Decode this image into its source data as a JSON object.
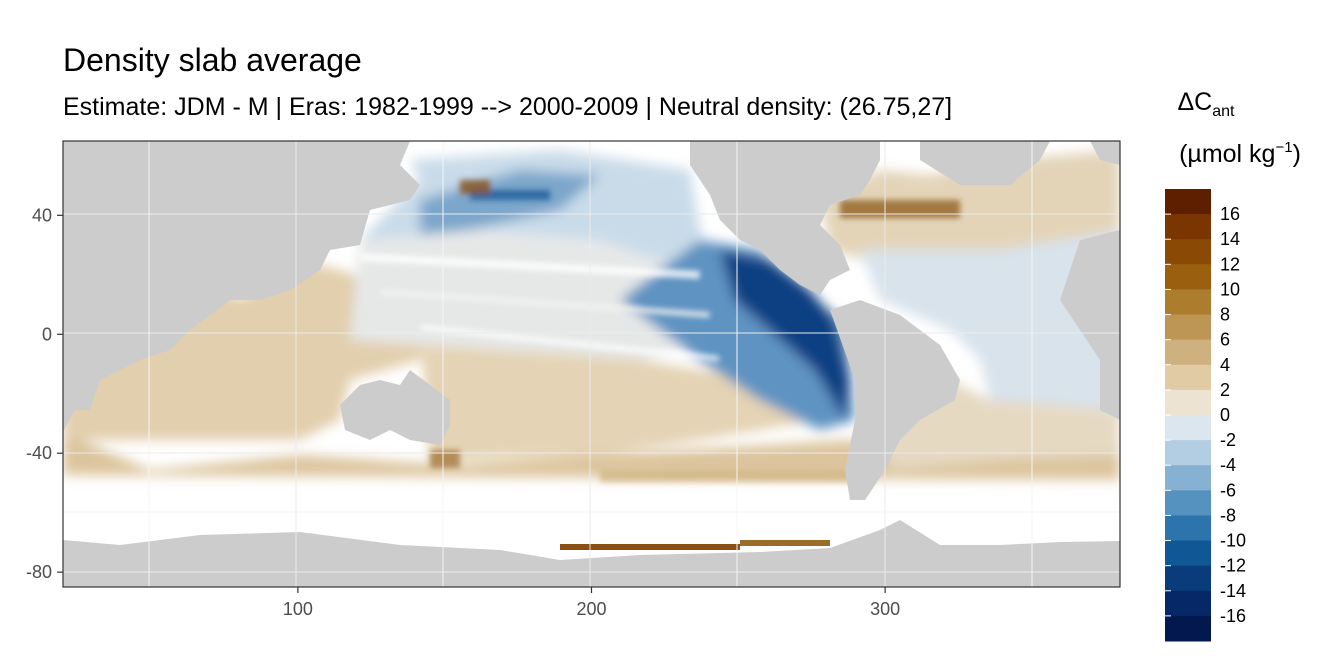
{
  "title": "Density slab average",
  "subtitle": "Estimate: JDM - M | Eras: 1982-1999 --> 2000-2009 | Neutral density: (26.75,27]",
  "chart_data": {
    "type": "heatmap",
    "title": "Density slab average",
    "subtitle": "Estimate: JDM - M | Eras: 1982-1999 --> 2000-2009 | Neutral density: (26.75,27]",
    "xlabel": "",
    "ylabel": "",
    "x_ticks": [
      100,
      200,
      300
    ],
    "y_ticks": [
      40,
      0,
      -40,
      -80
    ],
    "xlim": [
      20,
      380
    ],
    "ylim": [
      -85,
      65
    ],
    "grid": true,
    "legend": {
      "title_main": "ΔC",
      "title_sub": "ant",
      "units": "(µmol kg",
      "units_exp": "−1",
      "units_close": ")",
      "placement": "right",
      "breaks": [
        "16",
        "14",
        "12",
        "10",
        "8",
        "6",
        "4",
        "2",
        "0",
        "-2",
        "-4",
        "-6",
        "-8",
        "-10",
        "-12",
        "-14",
        "-16"
      ],
      "colors": [
        "#5e1e00",
        "#7a3500",
        "#8a4a06",
        "#9b600f",
        "#ac7d2c",
        "#bd9655",
        "#cfb07f",
        "#e0cba5",
        "#ece3d3",
        "#dbe6ee",
        "#b3cee2",
        "#86b1d2",
        "#5692c0",
        "#2c74ab",
        "#0f5795",
        "#0a3c7c",
        "#062866",
        "#03184f"
      ]
    },
    "land_color": "#cccccc",
    "no_data_color": "#ffffff"
  }
}
